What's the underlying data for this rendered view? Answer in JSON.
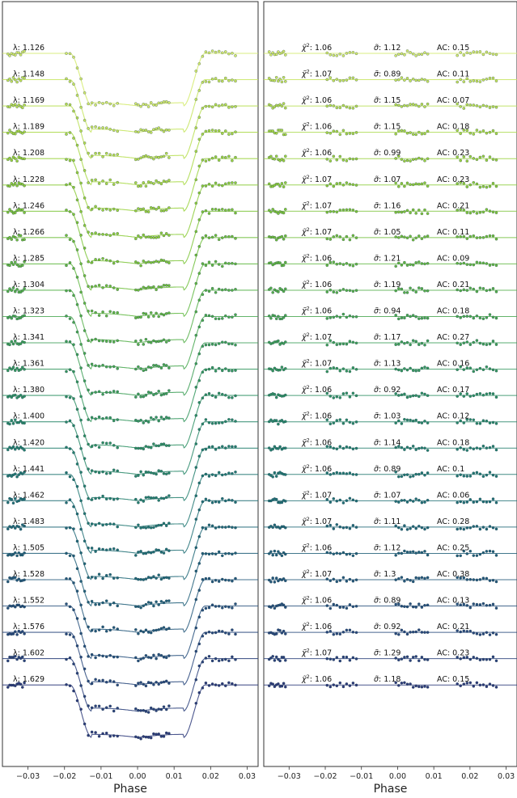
{
  "chart_data": [
    {
      "type": "line",
      "panel": "light-curves",
      "xlabel": "Phase",
      "xlim": [
        -0.037,
        0.033
      ],
      "xticks": [
        -0.03,
        -0.02,
        -0.01,
        0.0,
        0.01,
        0.02,
        0.03
      ],
      "xtick_labels": [
        "−0.03",
        "−0.02",
        "−0.01",
        "0.00",
        "0.01",
        "0.02",
        "0.03"
      ],
      "grid": false,
      "wavelengths": [
        "1.126",
        "1.148",
        "1.169",
        "1.189",
        "1.208",
        "1.228",
        "1.246",
        "1.266",
        "1.285",
        "1.304",
        "1.323",
        "1.341",
        "1.361",
        "1.380",
        "1.400",
        "1.420",
        "1.441",
        "1.462",
        "1.483",
        "1.505",
        "1.528",
        "1.552",
        "1.576",
        "1.602",
        "1.629"
      ],
      "label_prefix": "λ: ",
      "transit": {
        "ingress_start": -0.0185,
        "ingress_end": -0.0125,
        "egress_start": 0.0125,
        "egress_end": 0.0185
      },
      "colors": [
        "#d4eb6c",
        "#c6e55e",
        "#b8df52",
        "#a9d947",
        "#9bd33f",
        "#8dcd3b",
        "#7ec63a",
        "#70bf3d",
        "#62b843",
        "#55b04a",
        "#49a851",
        "#3ea058",
        "#35985f",
        "#2e9064",
        "#29886a",
        "#25806f",
        "#227873",
        "#217076",
        "#216878",
        "#22607a",
        "#24587b",
        "#27507c",
        "#29487c",
        "#2b417b",
        "#2d3a7a"
      ]
    },
    {
      "type": "scatter",
      "panel": "residuals",
      "xlabel": "Phase",
      "xlim": [
        -0.037,
        0.033
      ],
      "xticks": [
        -0.03,
        -0.02,
        -0.01,
        0.0,
        0.01,
        0.02,
        0.03
      ],
      "xtick_labels": [
        "−0.03",
        "−0.02",
        "−0.01",
        "0.00",
        "0.01",
        "0.02",
        "0.03"
      ],
      "grid": false,
      "chi2_prefix": ": ",
      "sigma_prefix": ": ",
      "ac_prefix": "AC: ",
      "chi2": [
        "1.06",
        "1.07",
        "1.06",
        "1.06",
        "1.06",
        "1.07",
        "1.07",
        "1.07",
        "1.06",
        "1.06",
        "1.06",
        "1.07",
        "1.07",
        "1.06",
        "1.06",
        "1.06",
        "1.06",
        "1.07",
        "1.07",
        "1.06",
        "1.07",
        "1.06",
        "1.06",
        "1.07",
        "1.06"
      ],
      "sigma": [
        "1.12",
        "0.89",
        "1.15",
        "1.15",
        "0.99",
        "1.07",
        "1.16",
        "1.05",
        "1.21",
        "1.19",
        "0.94",
        "1.17",
        "1.13",
        "0.92",
        "1.03",
        "1.14",
        "0.89",
        "1.07",
        "1.11",
        "1.12",
        "1.3",
        "0.89",
        "0.92",
        "1.29",
        "1.18"
      ],
      "ac": [
        "0.15",
        "0.11",
        "0.07",
        "0.18",
        "0.23",
        "0.23",
        "0.21",
        "0.11",
        "0.09",
        "0.21",
        "0.18",
        "0.27",
        "0.16",
        "0.17",
        "0.12",
        "0.18",
        "0.1",
        "0.06",
        "0.28",
        "0.25",
        "0.38",
        "0.13",
        "0.21",
        "0.23",
        "0.15"
      ]
    }
  ]
}
